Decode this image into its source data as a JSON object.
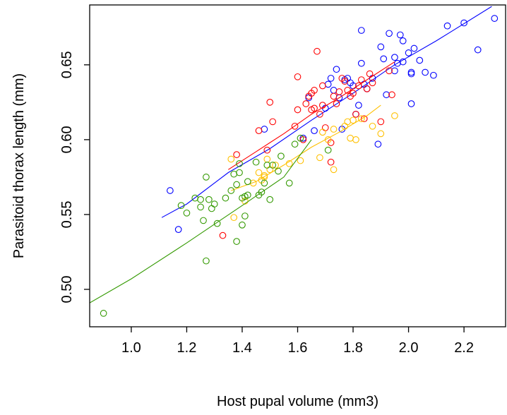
{
  "chart_data": {
    "type": "scatter",
    "title": "",
    "xlabel": "Host pupal volume (mm3)",
    "ylabel": "Parasitoid thorax length (mm)",
    "xlim": [
      0.85,
      2.35
    ],
    "ylim": [
      0.475,
      0.69
    ],
    "xticks": [
      1.0,
      1.2,
      1.4,
      1.6,
      1.8,
      2.0,
      2.2
    ],
    "xtick_labels": [
      "1.0",
      "1.2",
      "1.4",
      "1.6",
      "1.8",
      "2.0",
      "2.2"
    ],
    "yticks": [
      0.5,
      0.55,
      0.6,
      0.65
    ],
    "ytick_labels": [
      "0.50",
      "0.55",
      "0.60",
      "0.65"
    ],
    "grid": false,
    "legend": null,
    "series": [
      {
        "color": "#0000FF",
        "marker": "open-circle",
        "points": [
          [
            1.14,
            0.566
          ],
          [
            1.17,
            0.54
          ],
          [
            1.48,
            0.607
          ],
          [
            1.62,
            0.601
          ],
          [
            1.66,
            0.606
          ],
          [
            1.64,
            0.628
          ],
          [
            1.7,
            0.621
          ],
          [
            1.71,
            0.637
          ],
          [
            1.72,
            0.641
          ],
          [
            1.73,
            0.633
          ],
          [
            1.74,
            0.647
          ],
          [
            1.75,
            0.628
          ],
          [
            1.76,
            0.607
          ],
          [
            1.77,
            0.64
          ],
          [
            1.78,
            0.641
          ],
          [
            1.79,
            0.638
          ],
          [
            1.8,
            0.636
          ],
          [
            1.81,
            0.617
          ],
          [
            1.82,
            0.623
          ],
          [
            1.83,
            0.651
          ],
          [
            1.83,
            0.673
          ],
          [
            1.84,
            0.637
          ],
          [
            1.85,
            0.634
          ],
          [
            1.87,
            0.641
          ],
          [
            1.89,
            0.597
          ],
          [
            1.9,
            0.662
          ],
          [
            1.91,
            0.654
          ],
          [
            1.92,
            0.63
          ],
          [
            1.93,
            0.671
          ],
          [
            1.95,
            0.646
          ],
          [
            1.95,
            0.655
          ],
          [
            1.96,
            0.651
          ],
          [
            1.97,
            0.67
          ],
          [
            1.98,
            0.666
          ],
          [
            1.98,
            0.652
          ],
          [
            2.0,
            0.658
          ],
          [
            2.01,
            0.645
          ],
          [
            2.01,
            0.644
          ],
          [
            2.01,
            0.624
          ],
          [
            2.02,
            0.661
          ],
          [
            2.04,
            0.653
          ],
          [
            2.06,
            0.645
          ],
          [
            2.09,
            0.643
          ],
          [
            2.14,
            0.676
          ],
          [
            2.2,
            0.678
          ],
          [
            2.25,
            0.66
          ],
          [
            2.31,
            0.681
          ]
        ],
        "fit": [
          [
            1.11,
            0.548
          ],
          [
            1.2,
            0.557
          ],
          [
            1.35,
            0.578
          ],
          [
            1.5,
            0.594
          ],
          [
            1.65,
            0.613
          ],
          [
            1.8,
            0.631
          ],
          [
            1.95,
            0.65
          ],
          [
            2.1,
            0.666
          ],
          [
            2.3,
            0.689
          ]
        ]
      },
      {
        "color": "#FF0000",
        "marker": "open-circle",
        "points": [
          [
            1.33,
            0.536
          ],
          [
            1.38,
            0.59
          ],
          [
            1.46,
            0.606
          ],
          [
            1.49,
            0.593
          ],
          [
            1.5,
            0.625
          ],
          [
            1.51,
            0.612
          ],
          [
            1.59,
            0.609
          ],
          [
            1.6,
            0.62
          ],
          [
            1.6,
            0.642
          ],
          [
            1.62,
            0.6
          ],
          [
            1.63,
            0.624
          ],
          [
            1.64,
            0.629
          ],
          [
            1.65,
            0.62
          ],
          [
            1.65,
            0.631
          ],
          [
            1.66,
            0.633
          ],
          [
            1.66,
            0.621
          ],
          [
            1.67,
            0.659
          ],
          [
            1.68,
            0.617
          ],
          [
            1.69,
            0.623
          ],
          [
            1.69,
            0.636
          ],
          [
            1.7,
            0.608
          ],
          [
            1.72,
            0.598
          ],
          [
            1.72,
            0.585
          ],
          [
            1.73,
            0.629
          ],
          [
            1.74,
            0.624
          ],
          [
            1.75,
            0.632
          ],
          [
            1.76,
            0.641
          ],
          [
            1.77,
            0.639
          ],
          [
            1.78,
            0.633
          ],
          [
            1.79,
            0.629
          ],
          [
            1.8,
            0.631
          ],
          [
            1.81,
            0.617
          ],
          [
            1.82,
            0.636
          ],
          [
            1.83,
            0.64
          ],
          [
            1.84,
            0.614
          ],
          [
            1.85,
            0.634
          ],
          [
            1.86,
            0.644
          ],
          [
            1.87,
            0.638
          ],
          [
            1.9,
            0.612
          ],
          [
            1.93,
            0.646
          ],
          [
            1.94,
            0.63
          ]
        ],
        "fit": [
          [
            1.35,
            0.58
          ],
          [
            1.45,
            0.592
          ],
          [
            1.55,
            0.604
          ],
          [
            1.65,
            0.617
          ],
          [
            1.75,
            0.628
          ],
          [
            1.85,
            0.64
          ],
          [
            1.95,
            0.652
          ]
        ]
      },
      {
        "color": "#FFC000",
        "marker": "open-circle",
        "points": [
          [
            1.36,
            0.587
          ],
          [
            1.37,
            0.548
          ],
          [
            1.41,
            0.559
          ],
          [
            1.44,
            0.571
          ],
          [
            1.46,
            0.578
          ],
          [
            1.47,
            0.573
          ],
          [
            1.48,
            0.575
          ],
          [
            1.48,
            0.576
          ],
          [
            1.49,
            0.587
          ],
          [
            1.5,
            0.58
          ],
          [
            1.52,
            0.583
          ],
          [
            1.57,
            0.584
          ],
          [
            1.61,
            0.586
          ],
          [
            1.68,
            0.588
          ],
          [
            1.69,
            0.605
          ],
          [
            1.71,
            0.6
          ],
          [
            1.73,
            0.607
          ],
          [
            1.73,
            0.58
          ],
          [
            1.77,
            0.609
          ],
          [
            1.78,
            0.612
          ],
          [
            1.79,
            0.601
          ],
          [
            1.8,
            0.613
          ],
          [
            1.81,
            0.6
          ],
          [
            1.83,
            0.614
          ],
          [
            1.87,
            0.609
          ],
          [
            1.9,
            0.604
          ],
          [
            1.95,
            0.616
          ]
        ],
        "fit": [
          [
            1.36,
            0.566
          ],
          [
            1.45,
            0.572
          ],
          [
            1.55,
            0.583
          ],
          [
            1.65,
            0.595
          ],
          [
            1.75,
            0.605
          ],
          [
            1.85,
            0.616
          ],
          [
            1.9,
            0.623
          ]
        ]
      },
      {
        "color": "#339900",
        "marker": "open-circle",
        "points": [
          [
            0.9,
            0.484
          ],
          [
            1.18,
            0.556
          ],
          [
            1.2,
            0.551
          ],
          [
            1.23,
            0.561
          ],
          [
            1.25,
            0.555
          ],
          [
            1.25,
            0.56
          ],
          [
            1.26,
            0.546
          ],
          [
            1.27,
            0.575
          ],
          [
            1.27,
            0.519
          ],
          [
            1.28,
            0.56
          ],
          [
            1.29,
            0.554
          ],
          [
            1.3,
            0.557
          ],
          [
            1.31,
            0.544
          ],
          [
            1.34,
            0.561
          ],
          [
            1.36,
            0.566
          ],
          [
            1.37,
            0.577
          ],
          [
            1.38,
            0.532
          ],
          [
            1.38,
            0.57
          ],
          [
            1.39,
            0.584
          ],
          [
            1.39,
            0.578
          ],
          [
            1.4,
            0.543
          ],
          [
            1.4,
            0.561
          ],
          [
            1.41,
            0.562
          ],
          [
            1.41,
            0.549
          ],
          [
            1.42,
            0.572
          ],
          [
            1.42,
            0.563
          ],
          [
            1.45,
            0.585
          ],
          [
            1.46,
            0.563
          ],
          [
            1.47,
            0.565
          ],
          [
            1.48,
            0.571
          ],
          [
            1.49,
            0.583
          ],
          [
            1.5,
            0.56
          ],
          [
            1.51,
            0.583
          ],
          [
            1.53,
            0.579
          ],
          [
            1.54,
            0.589
          ],
          [
            1.57,
            0.571
          ],
          [
            1.59,
            0.597
          ],
          [
            1.61,
            0.601
          ],
          [
            1.71,
            0.593
          ]
        ],
        "fit": [
          [
            0.85,
            0.491
          ],
          [
            1.0,
            0.507
          ],
          [
            1.2,
            0.531
          ],
          [
            1.4,
            0.556
          ],
          [
            1.55,
            0.575
          ],
          [
            1.65,
            0.6
          ]
        ]
      }
    ]
  }
}
